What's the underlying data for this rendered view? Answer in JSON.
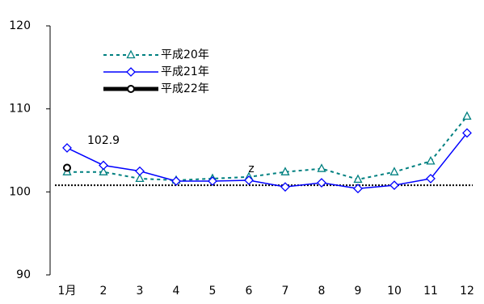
{
  "chart_data": {
    "type": "line",
    "categories": [
      "1月",
      "2",
      "3",
      "4",
      "5",
      "6",
      "7",
      "8",
      "9",
      "10",
      "11",
      "12"
    ],
    "series": [
      {
        "name": "平成20年",
        "color": "#008080",
        "values": [
          102.4,
          102.4,
          101.6,
          101.4,
          101.6,
          101.8,
          102.4,
          102.8,
          101.5,
          102.4,
          103.7,
          109.1
        ]
      },
      {
        "name": "平成21年",
        "color": "#0000ff",
        "values": [
          105.3,
          103.2,
          102.5,
          101.3,
          101.3,
          101.4,
          100.6,
          101.1,
          100.4,
          100.8,
          101.6,
          107.1
        ]
      },
      {
        "name": "平成22年",
        "color": "#000000",
        "values": [
          102.9,
          null,
          null,
          null,
          null,
          null,
          null,
          null,
          null,
          null,
          null,
          null
        ]
      }
    ],
    "ylim": [
      90,
      120
    ],
    "yticks": [
      90,
      100,
      110,
      120
    ],
    "reference_line": 100.8,
    "annotation": "z"
  }
}
